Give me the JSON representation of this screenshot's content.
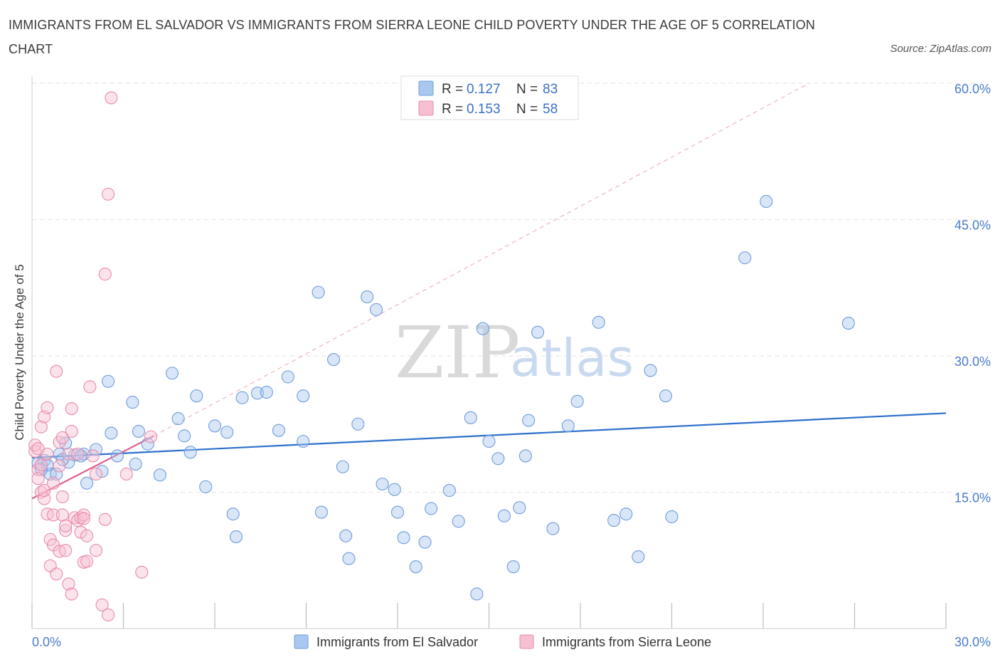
{
  "title": "IMMIGRANTS FROM EL SALVADOR VS IMMIGRANTS FROM SIERRA LEONE CHILD POVERTY UNDER THE AGE OF 5 CORRELATION CHART",
  "source": "Source: ZipAtlas.com",
  "watermark": {
    "zip": "ZIP",
    "atlas": "atlas"
  },
  "colors": {
    "blue_fill": "#a9c8f0",
    "blue_stroke": "#6f9ddb",
    "blue_line": "#2d6fcc",
    "pink_fill": "#f6c0d2",
    "pink_stroke": "#e98aab",
    "pink_line": "#e0608f",
    "grid": "#e2e2e2",
    "tick_text": "#4a7cc9"
  },
  "legend": {
    "rows": [
      {
        "r_label": "R = ",
        "r_value": "0.127",
        "n_label": "N = ",
        "n_value": "83"
      },
      {
        "r_label": "R = ",
        "r_value": "0.153",
        "n_label": "N = ",
        "n_value": "58"
      }
    ]
  },
  "chart_data": {
    "type": "scatter",
    "title": "IMMIGRANTS FROM EL SALVADOR VS IMMIGRANTS FROM SIERRA LEONE CHILD POVERTY UNDER THE AGE OF 5 CORRELATION CHART",
    "xlabel": "",
    "ylabel": "Child Poverty Under the Age of 5",
    "xlim": [
      0,
      30
    ],
    "ylim": [
      0,
      60
    ],
    "x_tick_labels": [
      {
        "value": 0,
        "label": "0.0%"
      },
      {
        "value": 30,
        "label": "30.0%"
      }
    ],
    "y_tick_labels": [
      {
        "value": 15,
        "label": "15.0%"
      },
      {
        "value": 30,
        "label": "30.0%"
      },
      {
        "value": 45,
        "label": "45.0%"
      },
      {
        "value": 60,
        "label": "60.0%"
      }
    ],
    "series": [
      {
        "name": "Immigrants from El Salvador",
        "color": "#a9c8f0",
        "points": [
          [
            0.2,
            18.2
          ],
          [
            0.4,
            18.5
          ],
          [
            0.6,
            17.0
          ],
          [
            0.9,
            19.2
          ],
          [
            1.4,
            19.1
          ],
          [
            1.8,
            16.0
          ],
          [
            2.5,
            27.2
          ],
          [
            2.6,
            21.5
          ],
          [
            3.3,
            24.9
          ],
          [
            3.5,
            21.7
          ],
          [
            3.4,
            18.1
          ],
          [
            4.6,
            28.1
          ],
          [
            4.8,
            23.1
          ],
          [
            5.0,
            21.2
          ],
          [
            5.4,
            25.6
          ],
          [
            5.7,
            15.6
          ],
          [
            6.0,
            22.3
          ],
          [
            6.4,
            21.6
          ],
          [
            6.6,
            12.6
          ],
          [
            6.7,
            10.1
          ],
          [
            6.9,
            25.4
          ],
          [
            7.4,
            25.9
          ],
          [
            7.7,
            26.0
          ],
          [
            8.1,
            21.8
          ],
          [
            8.4,
            27.7
          ],
          [
            8.9,
            25.6
          ],
          [
            8.9,
            20.6
          ],
          [
            9.4,
            37.0
          ],
          [
            9.5,
            12.8
          ],
          [
            9.9,
            29.6
          ],
          [
            10.2,
            17.8
          ],
          [
            10.3,
            10.2
          ],
          [
            10.4,
            7.7
          ],
          [
            10.7,
            22.5
          ],
          [
            11.0,
            36.5
          ],
          [
            11.3,
            35.1
          ],
          [
            11.5,
            15.9
          ],
          [
            11.9,
            15.3
          ],
          [
            12.0,
            12.8
          ],
          [
            12.2,
            10.0
          ],
          [
            12.6,
            6.8
          ],
          [
            12.9,
            9.5
          ],
          [
            13.1,
            13.2
          ],
          [
            13.7,
            15.2
          ],
          [
            14.0,
            11.8
          ],
          [
            14.4,
            23.2
          ],
          [
            14.6,
            3.8
          ],
          [
            14.8,
            33.0
          ],
          [
            15.0,
            20.6
          ],
          [
            15.3,
            18.7
          ],
          [
            15.5,
            12.4
          ],
          [
            15.8,
            6.8
          ],
          [
            16.0,
            13.3
          ],
          [
            16.2,
            19.0
          ],
          [
            16.3,
            22.9
          ],
          [
            16.6,
            32.6
          ],
          [
            17.1,
            11.0
          ],
          [
            17.6,
            22.3
          ],
          [
            17.9,
            25.0
          ],
          [
            18.6,
            33.7
          ],
          [
            19.1,
            11.9
          ],
          [
            19.5,
            12.6
          ],
          [
            19.9,
            7.9
          ],
          [
            20.3,
            28.4
          ],
          [
            20.8,
            25.6
          ],
          [
            21.0,
            12.3
          ],
          [
            23.4,
            40.8
          ],
          [
            24.1,
            47.0
          ],
          [
            26.8,
            33.6
          ],
          [
            0.5,
            18.0
          ],
          [
            1.1,
            20.4
          ],
          [
            1.7,
            19.2
          ],
          [
            2.3,
            17.3
          ],
          [
            1.2,
            18.3
          ],
          [
            0.8,
            17.0
          ],
          [
            2.1,
            19.7
          ],
          [
            1.6,
            19.0
          ],
          [
            0.3,
            17.5
          ],
          [
            3.8,
            20.3
          ],
          [
            4.2,
            16.9
          ],
          [
            5.2,
            19.4
          ],
          [
            2.8,
            19.0
          ],
          [
            1.0,
            18.6
          ]
        ],
        "trend": {
          "x": [
            0,
            30
          ],
          "y": [
            18.8,
            23.7
          ]
        }
      },
      {
        "name": "Immigrants from Sierra Leone",
        "color": "#f6c0d2",
        "points": [
          [
            0.1,
            19.5
          ],
          [
            0.1,
            20.2
          ],
          [
            0.2,
            17.5
          ],
          [
            0.2,
            16.5
          ],
          [
            0.3,
            18.0
          ],
          [
            0.3,
            15.0
          ],
          [
            0.3,
            22.2
          ],
          [
            0.4,
            23.3
          ],
          [
            0.4,
            14.3
          ],
          [
            0.5,
            24.3
          ],
          [
            0.5,
            19.2
          ],
          [
            0.5,
            12.6
          ],
          [
            0.6,
            9.8
          ],
          [
            0.6,
            6.9
          ],
          [
            0.7,
            16.0
          ],
          [
            0.7,
            12.5
          ],
          [
            0.7,
            9.2
          ],
          [
            0.8,
            6.0
          ],
          [
            0.8,
            28.3
          ],
          [
            0.9,
            8.5
          ],
          [
            0.9,
            20.5
          ],
          [
            0.9,
            17.9
          ],
          [
            1.0,
            14.5
          ],
          [
            1.0,
            21.0
          ],
          [
            1.0,
            12.5
          ],
          [
            1.1,
            10.8
          ],
          [
            1.1,
            11.3
          ],
          [
            1.1,
            8.6
          ],
          [
            1.2,
            19.2
          ],
          [
            1.2,
            4.9
          ],
          [
            1.3,
            3.8
          ],
          [
            1.3,
            24.2
          ],
          [
            1.3,
            21.7
          ],
          [
            1.4,
            12.2
          ],
          [
            1.5,
            11.9
          ],
          [
            1.5,
            19.2
          ],
          [
            1.6,
            12.2
          ],
          [
            1.7,
            12.5
          ],
          [
            1.6,
            10.6
          ],
          [
            1.7,
            7.3
          ],
          [
            1.8,
            7.4
          ],
          [
            1.7,
            12.1
          ],
          [
            1.8,
            10.2
          ],
          [
            1.9,
            26.6
          ],
          [
            2.0,
            19.0
          ],
          [
            2.1,
            17.0
          ],
          [
            2.1,
            8.6
          ],
          [
            2.3,
            2.6
          ],
          [
            2.4,
            39.0
          ],
          [
            2.4,
            12.0
          ],
          [
            2.5,
            1.5
          ],
          [
            2.5,
            47.8
          ],
          [
            2.6,
            58.4
          ],
          [
            3.1,
            17.0
          ],
          [
            3.6,
            6.2
          ],
          [
            3.9,
            21.1
          ],
          [
            0.2,
            19.8
          ],
          [
            0.4,
            15.2
          ]
        ],
        "trend": {
          "x": [
            0,
            4.0
          ],
          "y": [
            14.3,
            21.2
          ]
        },
        "trend_extension": {
          "x": [
            4.0,
            25.5
          ],
          "y": [
            21.2,
            60.0
          ]
        }
      }
    ]
  },
  "bottom_legend": [
    {
      "label": "Immigrants from El Salvador"
    },
    {
      "label": "Immigrants from Sierra Leone"
    }
  ]
}
